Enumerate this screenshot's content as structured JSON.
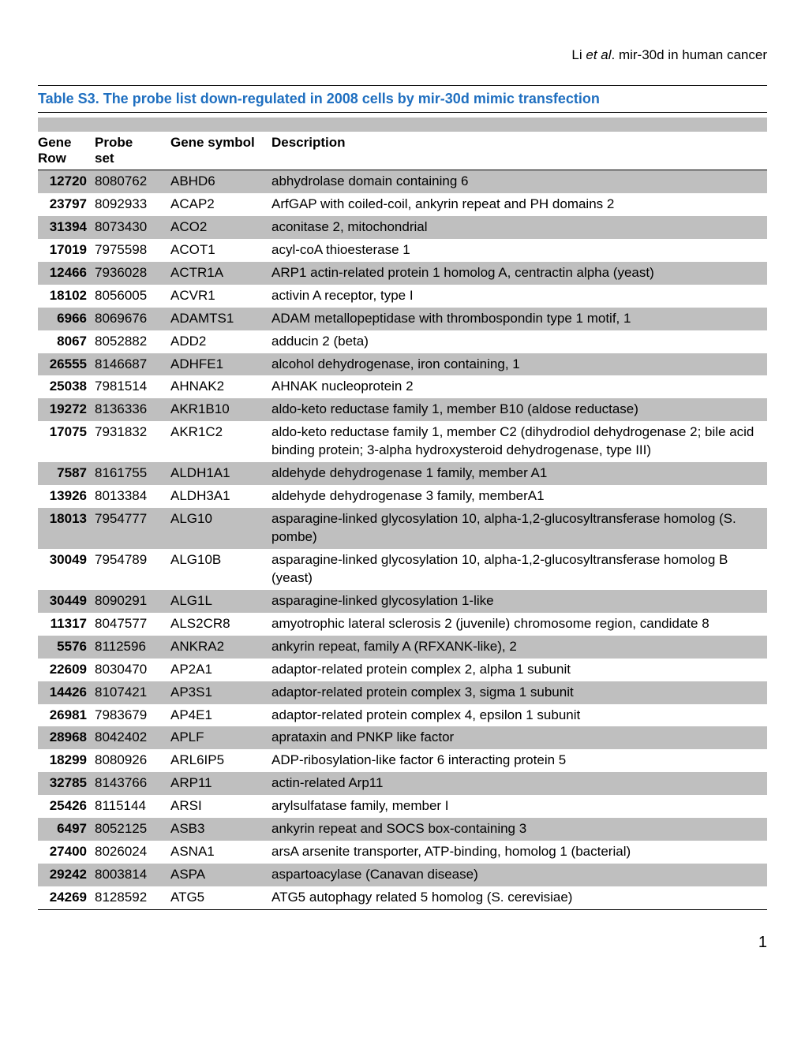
{
  "citation": {
    "author": "Li",
    "italic": "et al",
    "tail": ". mir-30d in human cancer"
  },
  "title": "Table S3. The probe list down-regulated in 2008 cells by mir-30d mimic transfection",
  "columns": {
    "c1a": "Gene",
    "c1b": "Row",
    "c2a": "Probe",
    "c2b": "set",
    "c3": "Gene symbol",
    "c4": "Description"
  },
  "page": "1",
  "colors": {
    "title": "#1f6fc0",
    "shade": "#bfbfbf",
    "rule": "#000000",
    "bg": "#ffffff"
  },
  "rows": [
    {
      "gene": "12720",
      "probe": "8080762",
      "sym": "ABHD6",
      "desc": "abhydrolase domain containing 6",
      "shade": true
    },
    {
      "gene": "23797",
      "probe": "8092933",
      "sym": "ACAP2",
      "desc": "ArfGAP with coiled-coil, ankyrin repeat and PH domains 2",
      "shade": false
    },
    {
      "gene": "31394",
      "probe": "8073430",
      "sym": "ACO2",
      "desc": "aconitase 2, mitochondrial",
      "shade": true
    },
    {
      "gene": "17019",
      "probe": "7975598",
      "sym": "ACOT1",
      "desc": "acyl-coA thioesterase 1",
      "shade": false
    },
    {
      "gene": "12466",
      "probe": "7936028",
      "sym": "ACTR1A",
      "desc": "ARP1 actin-related protein 1 homolog A, centractin alpha (yeast)",
      "shade": true
    },
    {
      "gene": "18102",
      "probe": "8056005",
      "sym": "ACVR1",
      "desc": "activin A receptor, type I",
      "shade": false
    },
    {
      "gene": "6966",
      "probe": "8069676",
      "sym": "ADAMTS1",
      "desc": "ADAM metallopeptidase with thrombospondin type 1 motif, 1",
      "shade": true
    },
    {
      "gene": "8067",
      "probe": "8052882",
      "sym": "ADD2",
      "desc": "adducin 2 (beta)",
      "shade": false
    },
    {
      "gene": "26555",
      "probe": "8146687",
      "sym": "ADHFE1",
      "desc": "alcohol dehydrogenase, iron containing, 1",
      "shade": true
    },
    {
      "gene": "25038",
      "probe": "7981514",
      "sym": "AHNAK2",
      "desc": "AHNAK nucleoprotein 2",
      "shade": false
    },
    {
      "gene": "19272",
      "probe": "8136336",
      "sym": "AKR1B10",
      "desc": "aldo-keto reductase family 1, member B10 (aldose reductase)",
      "shade": true
    },
    {
      "gene": "17075",
      "probe": "7931832",
      "sym": "AKR1C2",
      "desc": "aldo-keto reductase family 1, member C2 (dihydrodiol dehydrogenase 2; bile acid binding protein; 3-alpha hydroxysteroid dehydrogenase, type III)",
      "shade": false
    },
    {
      "gene": "7587",
      "probe": "8161755",
      "sym": "ALDH1A1",
      "desc": "aldehyde dehydrogenase 1 family, member A1",
      "shade": true
    },
    {
      "gene": "13926",
      "probe": "8013384",
      "sym": "ALDH3A1",
      "desc": "aldehyde dehydrogenase 3 family, memberA1",
      "shade": false
    },
    {
      "gene": "18013",
      "probe": "7954777",
      "sym": "ALG10",
      "desc": "asparagine-linked glycosylation 10, alpha-1,2-glucosyltransferase homolog (S. pombe)",
      "shade": true
    },
    {
      "gene": "30049",
      "probe": "7954789",
      "sym": "ALG10B",
      "desc": "asparagine-linked glycosylation 10, alpha-1,2-glucosyltransferase homolog B (yeast)",
      "shade": false
    },
    {
      "gene": "30449",
      "probe": "8090291",
      "sym": "ALG1L",
      "desc": "asparagine-linked glycosylation 1-like",
      "shade": true
    },
    {
      "gene": "11317",
      "probe": "8047577",
      "sym": "ALS2CR8",
      "desc": "amyotrophic lateral sclerosis 2 (juvenile) chromosome region, candidate 8",
      "shade": false
    },
    {
      "gene": "5576",
      "probe": "8112596",
      "sym": "ANKRA2",
      "desc": "ankyrin repeat, family A (RFXANK-like), 2",
      "shade": true
    },
    {
      "gene": "22609",
      "probe": "8030470",
      "sym": "AP2A1",
      "desc": "adaptor-related protein complex 2, alpha 1 subunit",
      "shade": false
    },
    {
      "gene": "14426",
      "probe": "8107421",
      "sym": "AP3S1",
      "desc": "adaptor-related protein complex 3, sigma 1 subunit",
      "shade": true
    },
    {
      "gene": "26981",
      "probe": "7983679",
      "sym": "AP4E1",
      "desc": "adaptor-related protein complex 4, epsilon 1 subunit",
      "shade": false
    },
    {
      "gene": "28968",
      "probe": "8042402",
      "sym": "APLF",
      "desc": "aprataxin and PNKP like factor",
      "shade": true
    },
    {
      "gene": "18299",
      "probe": "8080926",
      "sym": "ARL6IP5",
      "desc": "ADP-ribosylation-like factor 6 interacting protein 5",
      "shade": false
    },
    {
      "gene": "32785",
      "probe": "8143766",
      "sym": "ARP11",
      "desc": "actin-related Arp11",
      "shade": true
    },
    {
      "gene": "25426",
      "probe": "8115144",
      "sym": "ARSI",
      "desc": "arylsulfatase family, member I",
      "shade": false
    },
    {
      "gene": "6497",
      "probe": "8052125",
      "sym": "ASB3",
      "desc": "ankyrin repeat and SOCS box-containing 3",
      "shade": true
    },
    {
      "gene": "27400",
      "probe": "8026024",
      "sym": "ASNA1",
      "desc": "arsA arsenite transporter, ATP-binding, homolog 1 (bacterial)",
      "shade": false
    },
    {
      "gene": "29242",
      "probe": "8003814",
      "sym": "ASPA",
      "desc": "aspartoacylase (Canavan disease)",
      "shade": true
    },
    {
      "gene": "24269",
      "probe": "8128592",
      "sym": "ATG5",
      "desc": "ATG5 autophagy related 5 homolog (S. cerevisiae)",
      "shade": false
    }
  ]
}
